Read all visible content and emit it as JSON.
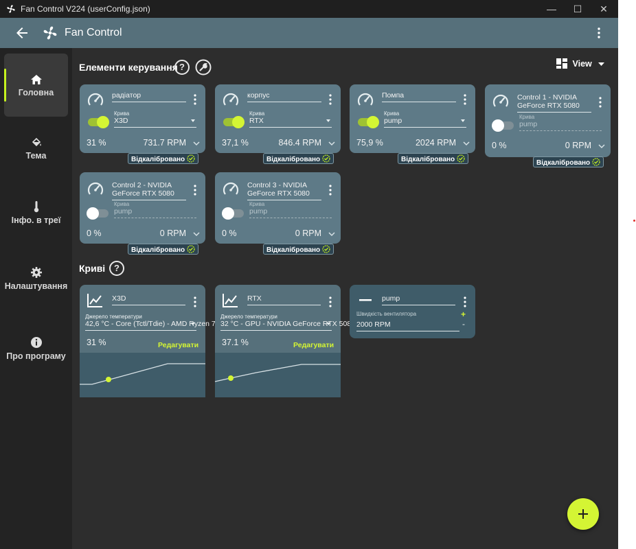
{
  "window": {
    "title": "Fan Control V224 (userConfig.json)",
    "minimize": "—",
    "maximize": "☐",
    "close": "✕"
  },
  "appbar": {
    "title": "Fan Control"
  },
  "sidebar": {
    "items": [
      {
        "label": "Головна",
        "icon": "home-icon",
        "active": true
      },
      {
        "label": "Тема",
        "icon": "paint-bucket-icon"
      },
      {
        "label": "Інфо. в треї",
        "icon": "thermometer-icon"
      },
      {
        "label": "Налаштування",
        "icon": "gear-icon"
      },
      {
        "label": "Про програму",
        "icon": "info-icon"
      }
    ]
  },
  "controls_section": {
    "title": "Елементи керування",
    "help": "?",
    "view_label": "View"
  },
  "controls": [
    {
      "name": "радіатор",
      "curve_label": "Крива",
      "curve": "X3D",
      "enabled": true,
      "percent": "31 %",
      "rpm": "731.7 RPM",
      "badge": "Відкалібровано"
    },
    {
      "name": "корпус",
      "curve_label": "Крива",
      "curve": "RTX",
      "enabled": true,
      "percent": "37,1 %",
      "rpm": "846.4 RPM",
      "badge": "Відкалібровано"
    },
    {
      "name": "Помпа",
      "curve_label": "Крива",
      "curve": "pump",
      "enabled": true,
      "percent": "75,9 %",
      "rpm": "2024 RPM",
      "badge": "Відкалібровано"
    },
    {
      "name": "Control 1 - NVIDIA GeForce RTX 5080",
      "curve_label": "Крива",
      "curve": "pump",
      "enabled": false,
      "percent": "0 %",
      "rpm": "0 RPM",
      "badge": "Відкалібровано"
    },
    {
      "name": "Control 2 - NVIDIA GeForce RTX 5080",
      "curve_label": "Крива",
      "curve": "pump",
      "enabled": false,
      "percent": "0 %",
      "rpm": "0 RPM",
      "badge": "Відкалібровано"
    },
    {
      "name": "Control 3 - NVIDIA GeForce RTX 5080",
      "curve_label": "Крива",
      "curve": "pump",
      "enabled": false,
      "percent": "0 %",
      "rpm": "0 RPM",
      "badge": "Відкалібровано"
    }
  ],
  "curves_section": {
    "title": "Криві",
    "help": "?"
  },
  "curves": [
    {
      "name": "X3D",
      "source_label": "Джерело температури",
      "source": "42,6 °C - Core (Tctl/Tdie) - AMD Ryzen 7",
      "percent": "31 %",
      "edit": "Редагувати"
    },
    {
      "name": "RTX",
      "source_label": "Джерело температури",
      "source": "32 °C - GPU - NVIDIA GeForce RTX 5080",
      "percent": "37.1 %",
      "edit": "Редагувати"
    }
  ],
  "flat_curve": {
    "name": "pump",
    "label": "Швидкість вентилятора",
    "value": "2000 RPM",
    "plus": "+",
    "minus": "-"
  },
  "fab": {
    "icon": "plus-icon"
  },
  "colors": {
    "accent": "#d4f534",
    "card": "#5e7a87",
    "appbar": "#56707b",
    "background": "#2d2d2d"
  }
}
